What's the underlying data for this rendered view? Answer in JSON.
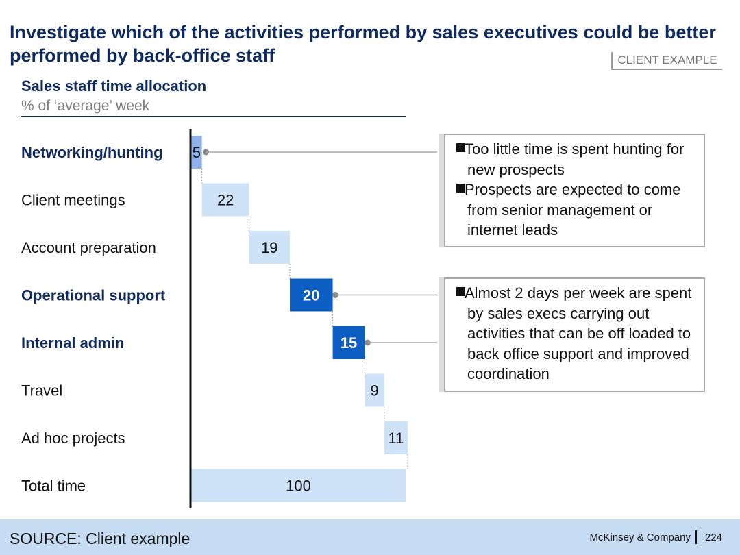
{
  "header": {
    "title": "Investigate which of the activities performed by sales executives could be better performed by back-office staff",
    "badge": "CLIENT EXAMPLE",
    "subtitle": "Sales staff time allocation",
    "subtitle_units": "% of ‘average’ week"
  },
  "colors": {
    "navy": "#0f2a5c",
    "light_bar": "#cfe3f8",
    "highlight_bar": "#0c5ec3",
    "networking_bar": "#8fb0ea",
    "footer_bg": "#c5dcf3"
  },
  "chart_data": {
    "type": "bar",
    "subtype": "waterfall",
    "title": "Sales staff time allocation",
    "ylabel": "% of ‘average’ week",
    "categories": [
      "Networking/hunting",
      "Client meetings",
      "Account preparation",
      "Operational support",
      "Internal admin",
      "Travel",
      "Ad hoc projects",
      "Total time"
    ],
    "values": [
      5,
      22,
      19,
      20,
      15,
      9,
      11,
      100
    ],
    "highlighted": [
      "Networking/hunting",
      "Operational support",
      "Internal admin"
    ],
    "total_index": 7,
    "xlim": [
      0,
      100
    ]
  },
  "callouts": [
    {
      "bullets": [
        "Too little time is spent hunting for new prospects",
        "Prospects are expected to come from senior management or internet leads"
      ]
    },
    {
      "bullets": [
        "Almost 2 days per week are spent by sales execs carrying out activities that can be off loaded to back office support and improved coordination"
      ]
    }
  ],
  "footer": {
    "source": "SOURCE: Client example",
    "company": "McKinsey & Company",
    "page": "224"
  }
}
